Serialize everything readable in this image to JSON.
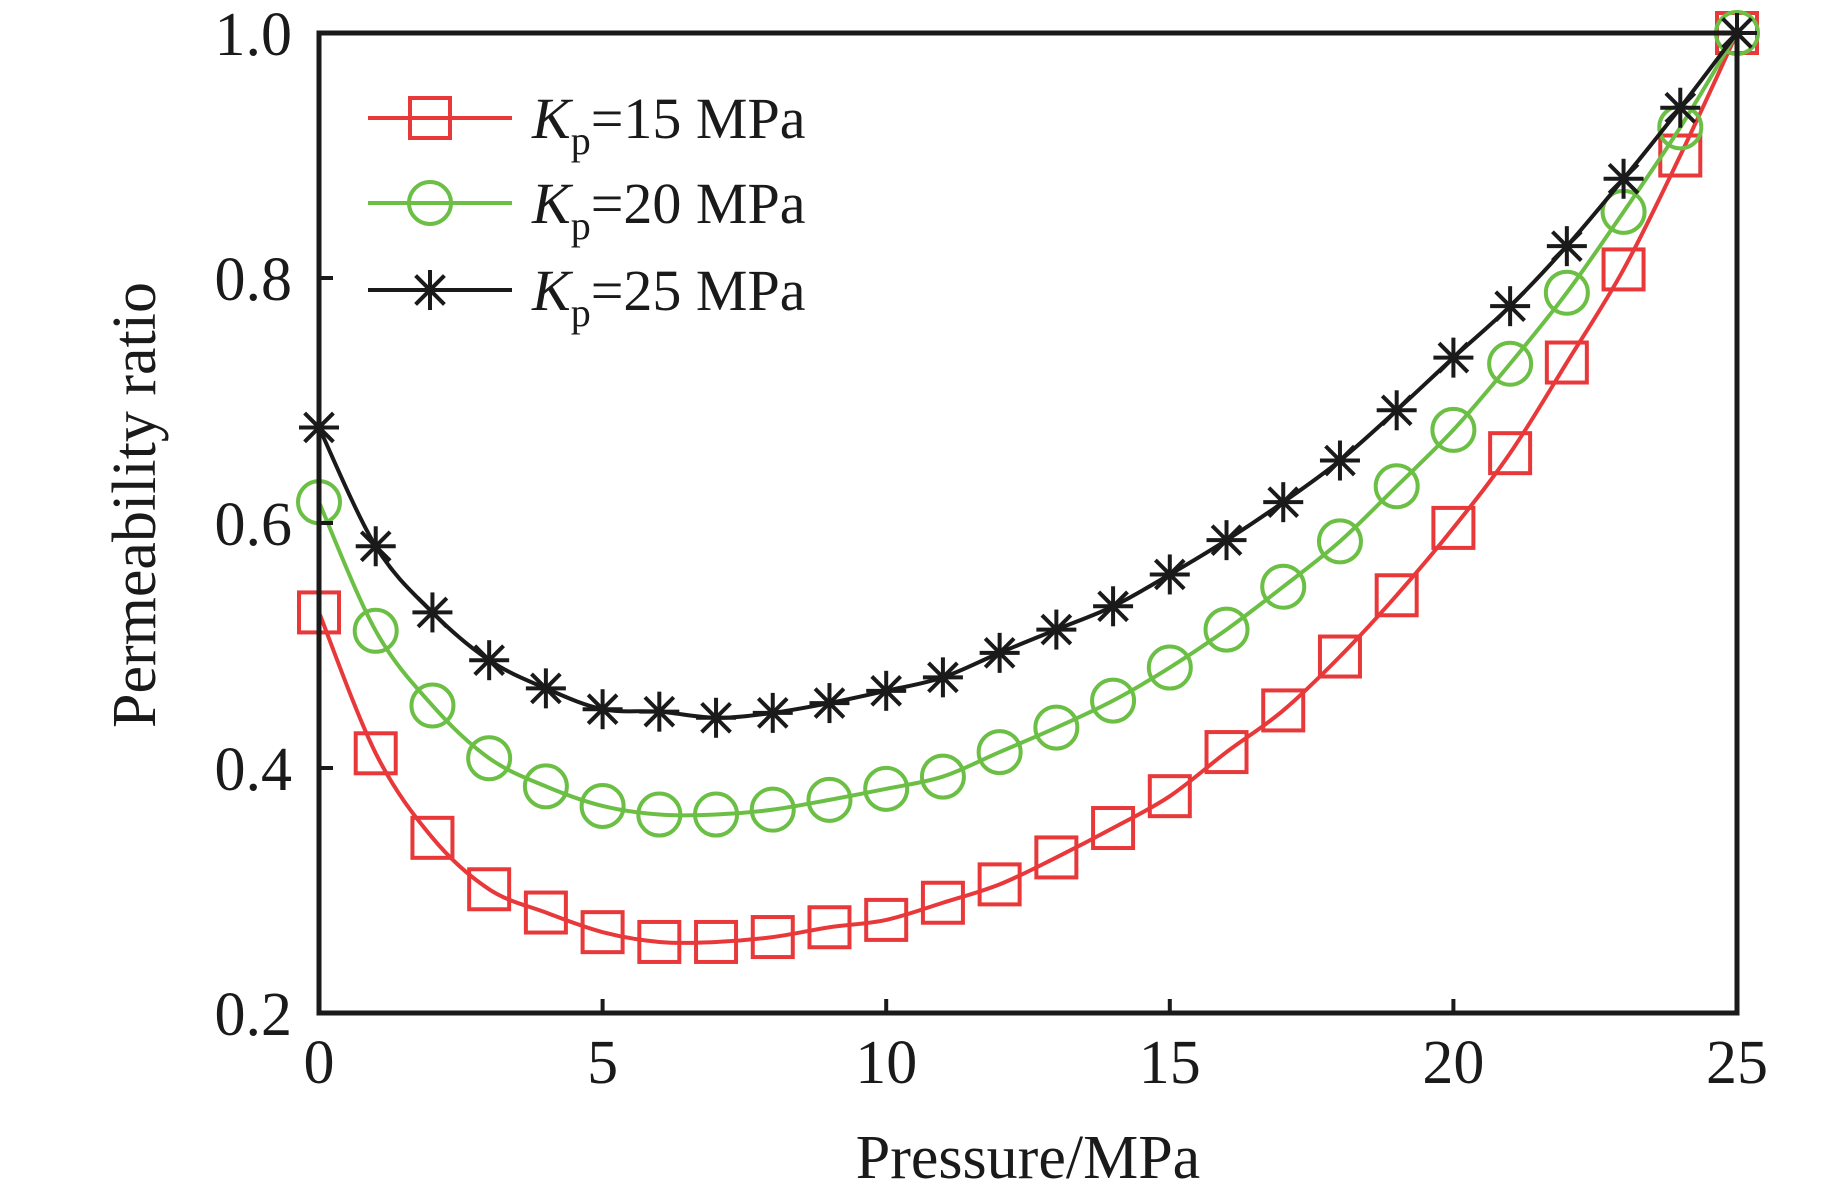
{
  "chart_data": {
    "type": "line",
    "title": "",
    "xlabel": "Pressure/MPa",
    "ylabel": "Permeability ratio",
    "xlim": [
      0,
      25
    ],
    "ylim": [
      0.2,
      1.0
    ],
    "xticks": [
      0,
      5,
      10,
      15,
      20,
      25
    ],
    "xtick_labels": [
      "0",
      "5",
      "10",
      "15",
      "20",
      "25"
    ],
    "yticks": [
      0.2,
      0.4,
      0.6,
      0.8,
      1.0
    ],
    "ytick_labels": [
      "0.2",
      "0.4",
      "0.6",
      "0.8",
      "1.0"
    ],
    "grid": false,
    "legend_position": "top-left",
    "x": [
      0,
      1,
      2,
      3,
      4,
      5,
      6,
      7,
      8,
      9,
      10,
      11,
      12,
      13,
      14,
      15,
      16,
      17,
      18,
      19,
      20,
      21,
      22,
      23,
      24,
      25
    ],
    "series": [
      {
        "name": "Kp=15 MPa",
        "legend_main": "K",
        "legend_sub": "p",
        "legend_rest": "=15 MPa",
        "color": "#e8383a",
        "marker": "square",
        "values": [
          0.527,
          0.412,
          0.343,
          0.301,
          0.282,
          0.266,
          0.258,
          0.258,
          0.262,
          0.27,
          0.276,
          0.29,
          0.305,
          0.327,
          0.351,
          0.377,
          0.413,
          0.447,
          0.491,
          0.541,
          0.596,
          0.657,
          0.731,
          0.807,
          0.9,
          1.0
        ]
      },
      {
        "name": "Kp=20 MPa",
        "legend_main": "K",
        "legend_sub": "p",
        "legend_rest": "=20 MPa",
        "color": "#6cbf45",
        "marker": "circle",
        "values": [
          0.617,
          0.512,
          0.451,
          0.408,
          0.385,
          0.369,
          0.362,
          0.362,
          0.366,
          0.374,
          0.383,
          0.393,
          0.413,
          0.433,
          0.455,
          0.482,
          0.513,
          0.548,
          0.585,
          0.63,
          0.676,
          0.73,
          0.788,
          0.854,
          0.923,
          1.0
        ]
      },
      {
        "name": "Kp=25 MPa",
        "legend_main": "K",
        "legend_sub": "p",
        "legend_rest": "=25 MPa",
        "color": "#1a1a1a",
        "marker": "asterisk",
        "values": [
          0.678,
          0.581,
          0.527,
          0.488,
          0.465,
          0.448,
          0.446,
          0.441,
          0.445,
          0.453,
          0.463,
          0.474,
          0.494,
          0.513,
          0.532,
          0.558,
          0.586,
          0.617,
          0.651,
          0.692,
          0.735,
          0.777,
          0.826,
          0.881,
          0.939,
          1.0
        ]
      }
    ]
  }
}
